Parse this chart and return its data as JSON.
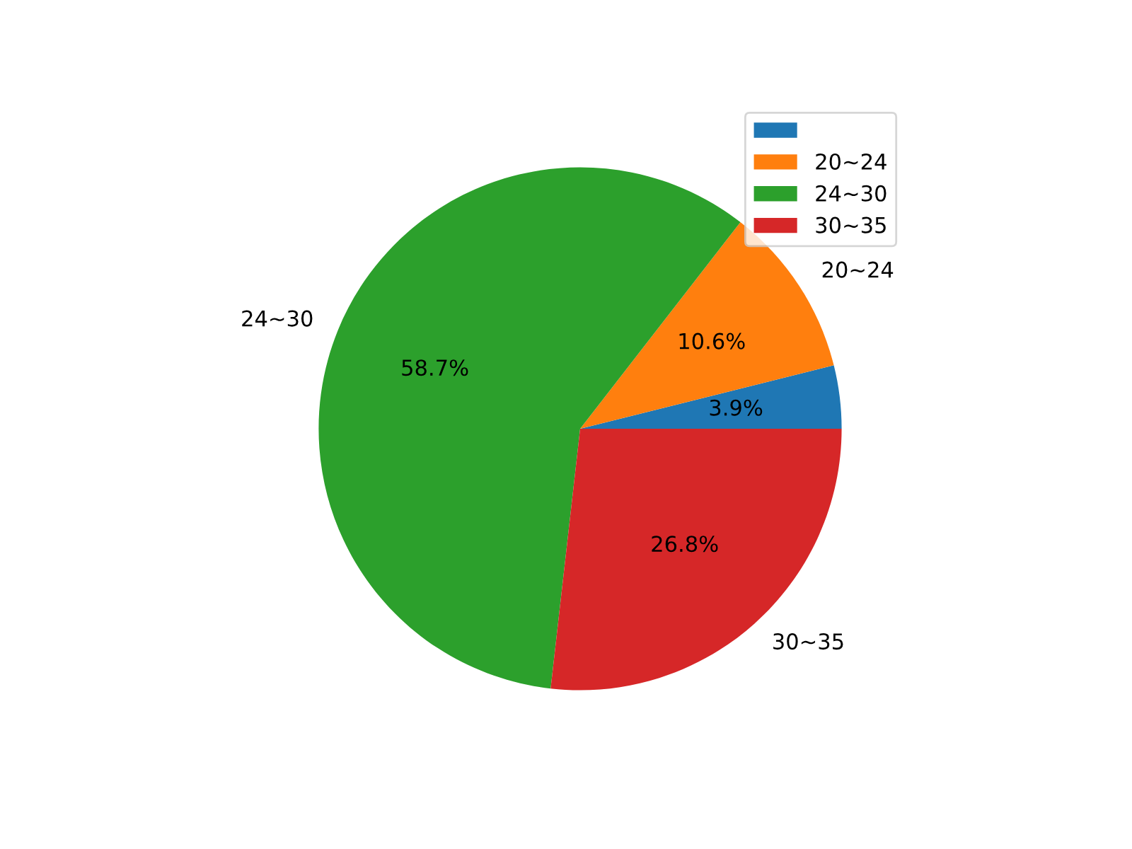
{
  "chart_data": {
    "type": "pie",
    "categories": [
      null,
      "20~24",
      "24~30",
      "30~35"
    ],
    "values": [
      3.9,
      10.6,
      58.7,
      26.8
    ],
    "value_labels": [
      "3.9%",
      "10.6%",
      "58.7%",
      "26.8%"
    ],
    "colors": [
      "#1f77b4",
      "#ff7f0e",
      "#2ca02c",
      "#d62728"
    ],
    "legend": "top right"
  }
}
